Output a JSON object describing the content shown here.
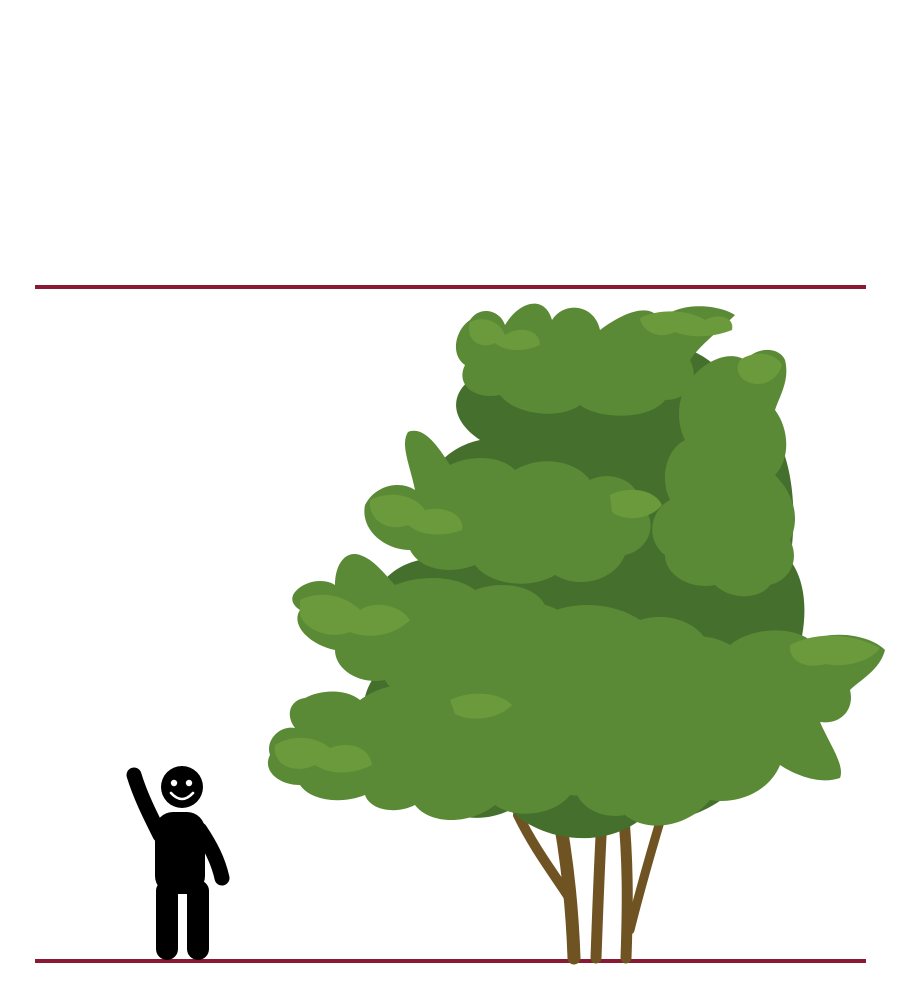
{
  "diagram": {
    "kind": "height-comparison",
    "colors": {
      "background": "#ffffff",
      "reference_line": "#8a1a33",
      "person": "#000000",
      "trunk": "#6f5322",
      "foliage_dark": "#456f2c",
      "foliage_mid": "#5a8a35",
      "foliage_light": "#6a9a3c"
    },
    "person": {
      "icon": "waving-person-icon"
    },
    "tree": {
      "icon": "multi-stem-tree-icon"
    }
  }
}
